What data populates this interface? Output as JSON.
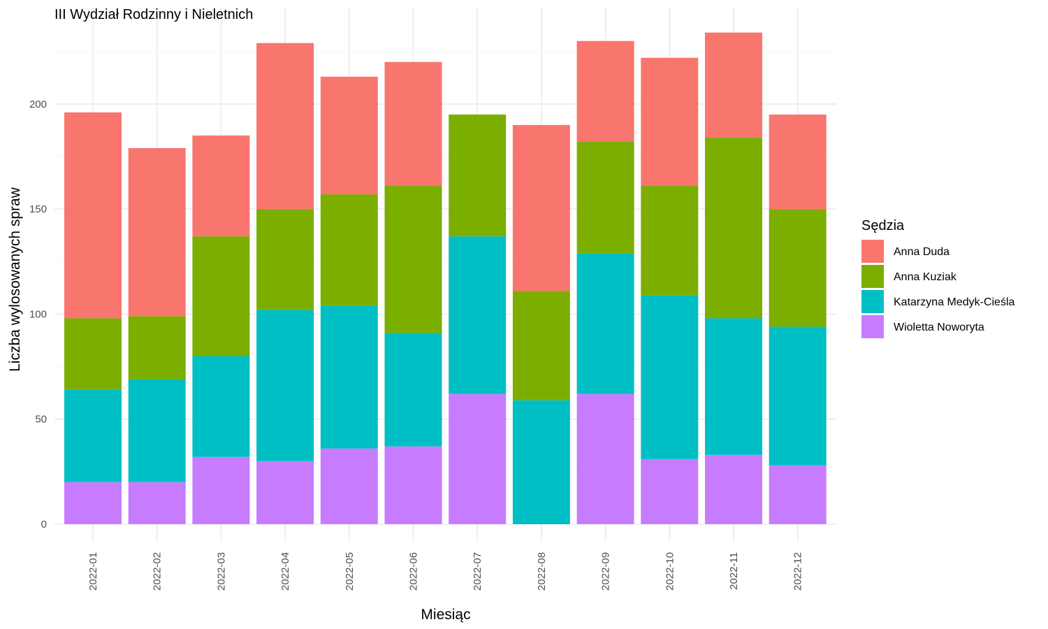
{
  "chart_data": {
    "type": "bar",
    "stacked": true,
    "title": "III Wydział Rodzinny i Nieletnich",
    "xlabel": "Miesiąc",
    "ylabel": "Liczba wylosowanych spraw",
    "ylim": [
      0,
      240
    ],
    "y_ticks": [
      0,
      50,
      100,
      150,
      200
    ],
    "x_tick_rotation": -90,
    "grid": true,
    "legend_title": "Sędzia",
    "legend_position": "right",
    "categories": [
      "2022-01",
      "2022-02",
      "2022-03",
      "2022-04",
      "2022-05",
      "2022-06",
      "2022-07",
      "2022-08",
      "2022-09",
      "2022-10",
      "2022-11",
      "2022-12"
    ],
    "series": [
      {
        "name": "Anna Duda",
        "color": "#F8766D",
        "values": [
          98,
          80,
          48,
          79,
          56,
          59,
          0,
          79,
          48,
          61,
          50,
          45
        ]
      },
      {
        "name": "Anna Kuziak",
        "color": "#7CAE00",
        "values": [
          34,
          30,
          57,
          48,
          53,
          70,
          58,
          52,
          53,
          52,
          86,
          56
        ]
      },
      {
        "name": "Katarzyna Medyk-Cieśla",
        "color": "#00BFC4",
        "values": [
          44,
          49,
          48,
          72,
          68,
          54,
          75,
          59,
          67,
          78,
          65,
          66
        ]
      },
      {
        "name": "Wioletta Noworyta",
        "color": "#C77CFF",
        "values": [
          20,
          20,
          32,
          30,
          36,
          37,
          62,
          0,
          62,
          31,
          33,
          28
        ]
      }
    ],
    "stack_order_bottom_to_top": [
      "Wioletta Noworyta",
      "Katarzyna Medyk-Cieśla",
      "Anna Kuziak",
      "Anna Duda"
    ]
  }
}
